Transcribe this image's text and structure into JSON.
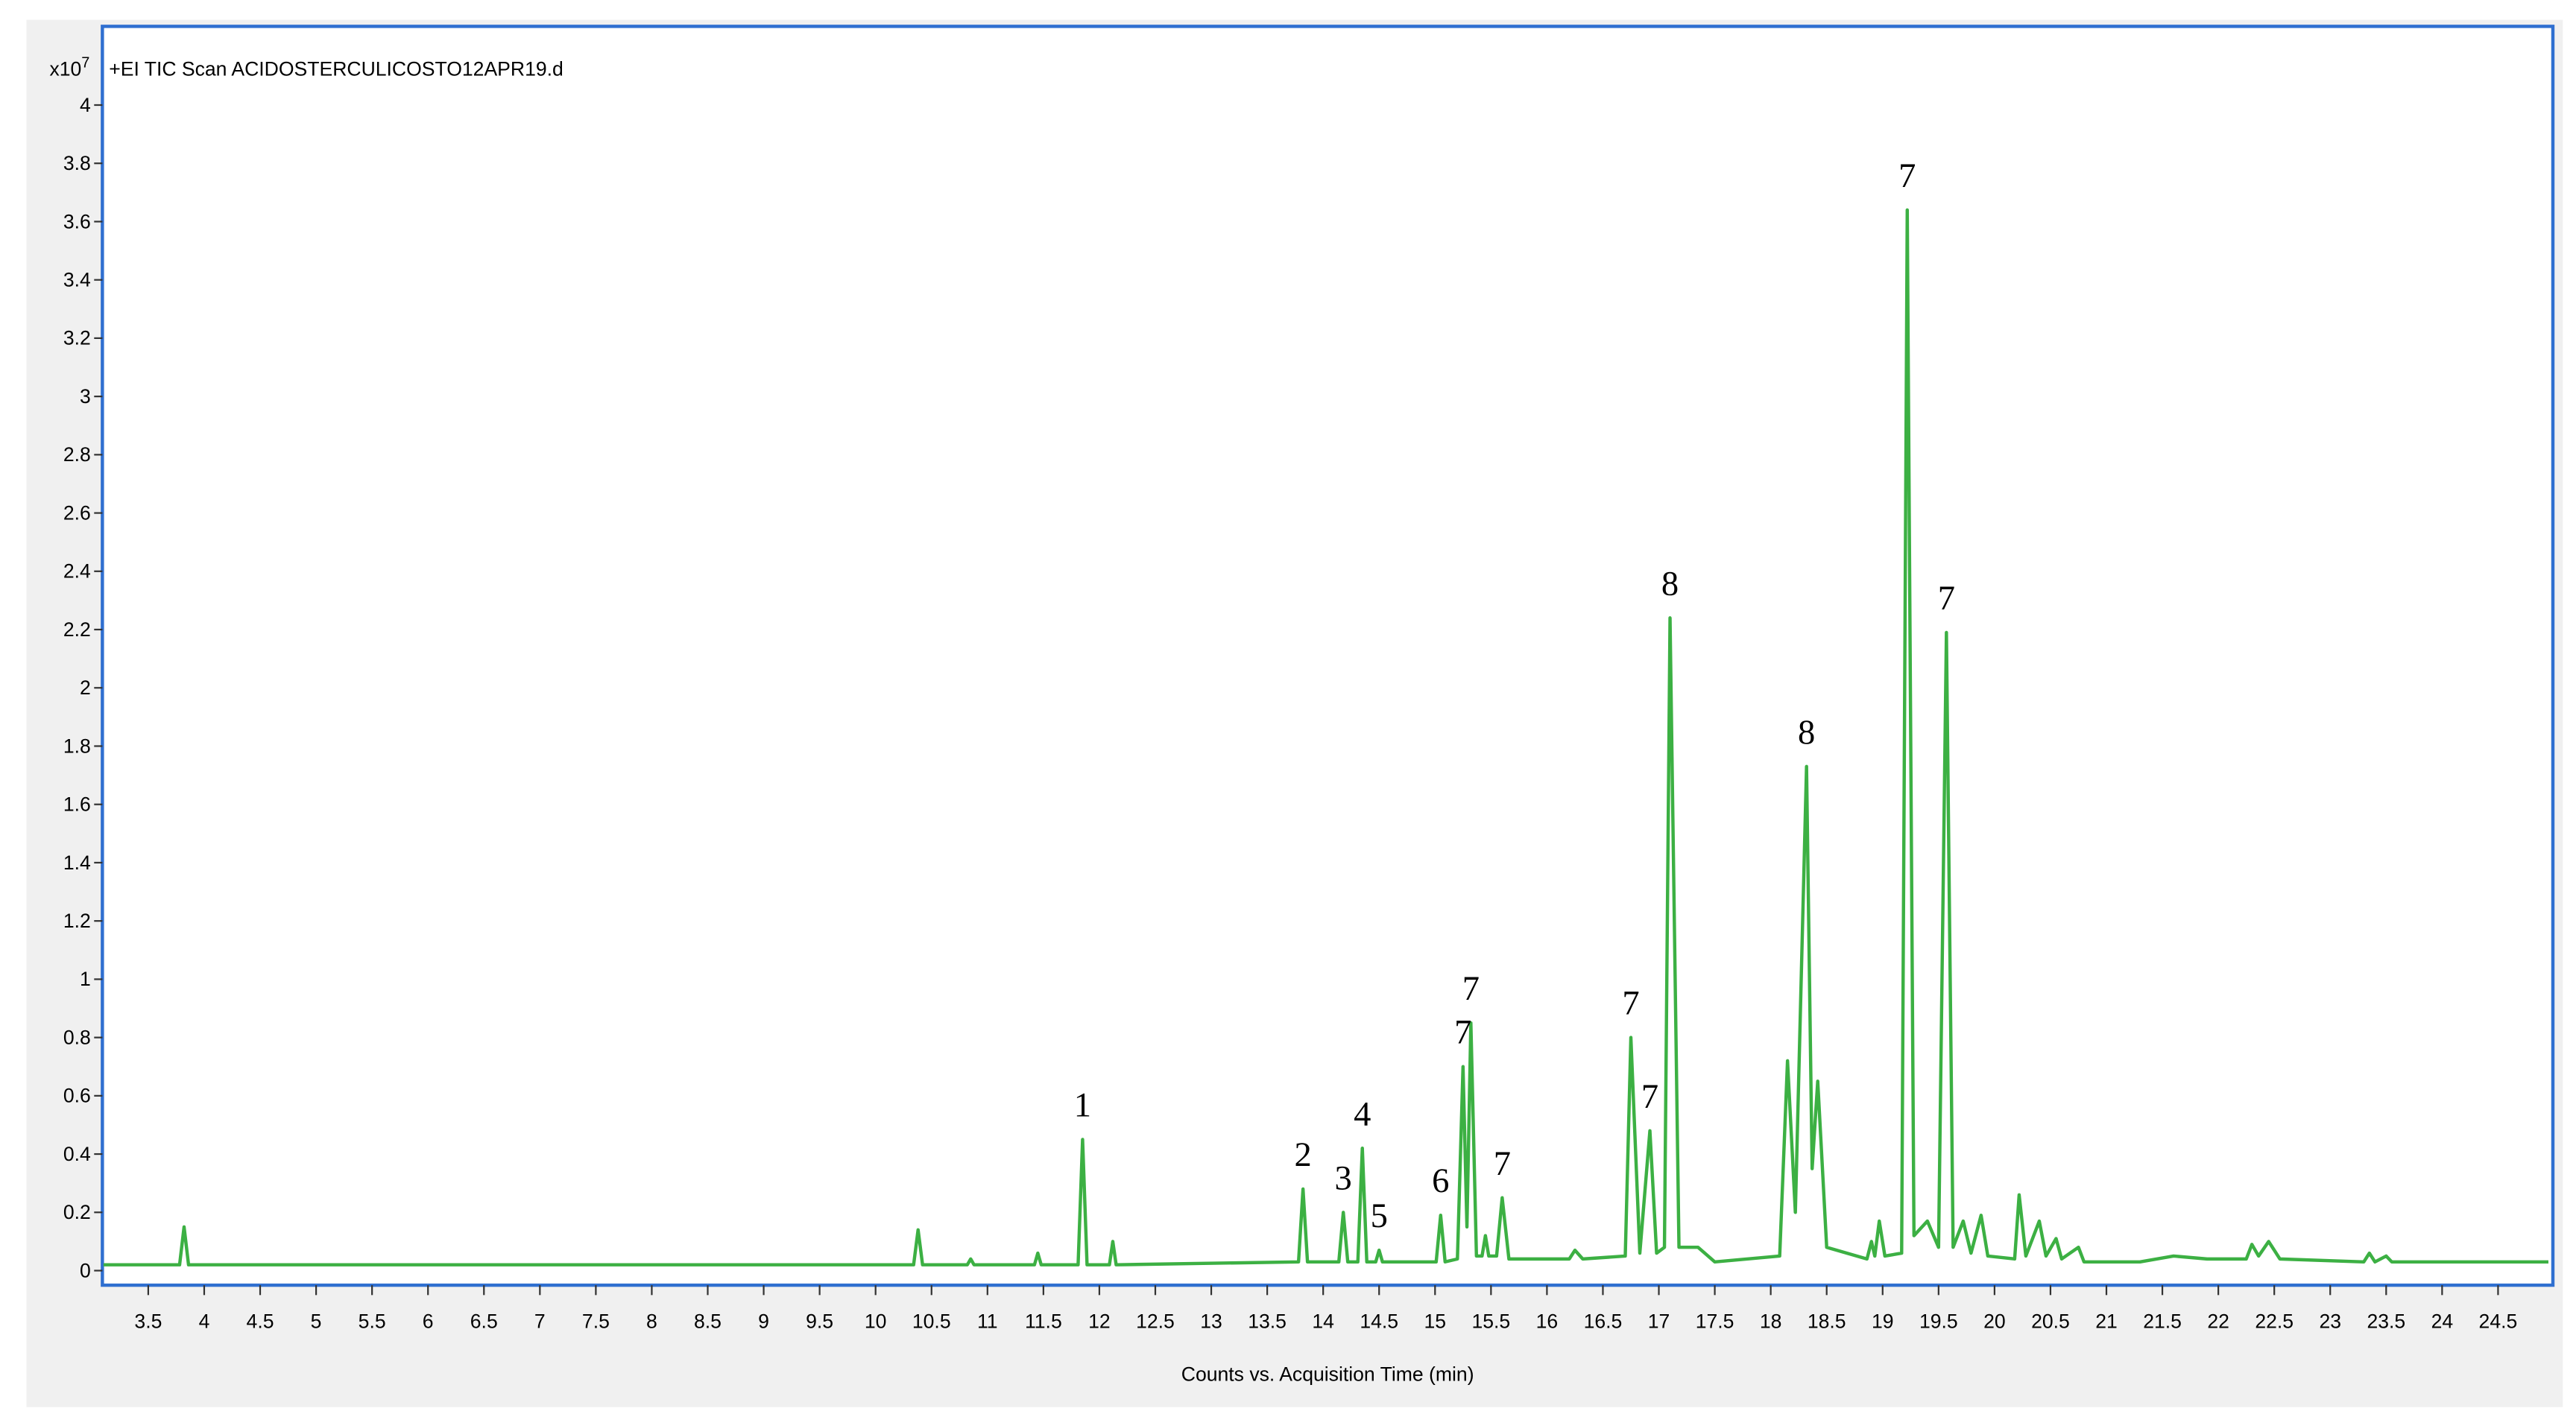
{
  "chart_data": {
    "type": "line",
    "title": "+EI TIC Scan ACIDOSTERCULICOSTO12APR19.d",
    "y_label": "x10",
    "y_label_exponent": "7",
    "x_label": "Counts vs. Acquisition Time (min)",
    "xlim": [
      3.09,
      24.99
    ],
    "ylim": [
      -0.05,
      4.27
    ],
    "xticks": [
      3.5,
      4,
      4.5,
      5,
      5.5,
      6,
      6.5,
      7,
      7.5,
      8,
      8.5,
      9,
      9.5,
      10,
      10.5,
      11,
      11.5,
      12,
      12.5,
      13,
      13.5,
      14,
      14.5,
      15,
      15.5,
      16,
      16.5,
      17,
      17.5,
      18,
      18.5,
      19,
      19.5,
      20,
      20.5,
      21,
      21.5,
      22,
      22.5,
      23,
      23.5,
      24,
      24.5
    ],
    "yticks": [
      0,
      0.2,
      0.4,
      0.6,
      0.8,
      1,
      1.2,
      1.4,
      1.6,
      1.8,
      2,
      2.2,
      2.4,
      2.6,
      2.8,
      3,
      3.2,
      3.4,
      3.6,
      3.8,
      4
    ],
    "x": [
      3.1,
      3.78,
      3.82,
      3.86,
      10.34,
      10.38,
      10.42,
      10.82,
      10.85,
      10.88,
      11.42,
      11.45,
      11.48,
      11.81,
      11.85,
      11.89,
      12.09,
      12.12,
      12.15,
      13.78,
      13.82,
      13.86,
      14.14,
      14.18,
      14.22,
      14.31,
      14.35,
      14.39,
      14.47,
      14.5,
      14.53,
      15.01,
      15.05,
      15.09,
      15.2,
      15.25,
      15.285,
      15.32,
      15.37,
      15.42,
      15.45,
      15.48,
      15.55,
      15.6,
      15.66,
      16.2,
      16.25,
      16.32,
      16.7,
      16.75,
      16.83,
      16.92,
      16.98,
      17.05,
      17.1,
      17.18,
      17.35,
      17.5,
      18.08,
      18.15,
      18.22,
      18.32,
      18.37,
      18.42,
      18.5,
      18.86,
      18.9,
      18.93,
      18.97,
      19.02,
      19.17,
      19.22,
      19.28,
      19.4,
      19.5,
      19.57,
      19.63,
      19.72,
      19.79,
      19.88,
      19.94,
      20.18,
      20.22,
      20.28,
      20.4,
      20.46,
      20.55,
      20.6,
      20.75,
      20.8,
      21.3,
      21.6,
      21.9,
      22.25,
      22.3,
      22.36,
      22.45,
      22.55,
      23.3,
      23.35,
      23.4,
      23.5,
      23.55,
      24.95
    ],
    "series": [
      {
        "color": "#3cb043",
        "values": [
          0.02,
          0.02,
          0.15,
          0.02,
          0.02,
          0.14,
          0.02,
          0.02,
          0.04,
          0.02,
          0.02,
          0.06,
          0.02,
          0.02,
          0.45,
          0.02,
          0.02,
          0.1,
          0.02,
          0.03,
          0.28,
          0.03,
          0.03,
          0.2,
          0.03,
          0.03,
          0.42,
          0.03,
          0.03,
          0.07,
          0.03,
          0.03,
          0.19,
          0.03,
          0.04,
          0.7,
          0.15,
          0.85,
          0.05,
          0.05,
          0.12,
          0.05,
          0.05,
          0.25,
          0.04,
          0.04,
          0.07,
          0.04,
          0.05,
          0.8,
          0.06,
          0.48,
          0.06,
          0.08,
          2.24,
          0.08,
          0.08,
          0.03,
          0.05,
          0.72,
          0.2,
          1.73,
          0.35,
          0.65,
          0.08,
          0.04,
          0.1,
          0.05,
          0.17,
          0.05,
          0.06,
          3.64,
          0.12,
          0.17,
          0.08,
          2.19,
          0.08,
          0.17,
          0.06,
          0.19,
          0.05,
          0.04,
          0.26,
          0.05,
          0.17,
          0.05,
          0.11,
          0.04,
          0.08,
          0.03,
          0.03,
          0.05,
          0.04,
          0.04,
          0.09,
          0.05,
          0.1,
          0.04,
          0.03,
          0.06,
          0.03,
          0.05,
          0.03,
          0.03
        ]
      }
    ],
    "annotations": [
      {
        "text": "1",
        "x": 11.85,
        "y": 0.45
      },
      {
        "text": "2",
        "x": 13.82,
        "y": 0.28
      },
      {
        "text": "3",
        "x": 14.18,
        "y": 0.2
      },
      {
        "text": "4",
        "x": 14.35,
        "y": 0.42
      },
      {
        "text": "5",
        "x": 14.5,
        "y": 0.07
      },
      {
        "text": "6",
        "x": 15.05,
        "y": 0.19
      },
      {
        "text": "7",
        "x": 15.25,
        "y": 0.7
      },
      {
        "text": "7",
        "x": 15.32,
        "y": 0.85
      },
      {
        "text": "7",
        "x": 15.6,
        "y": 0.25
      },
      {
        "text": "7",
        "x": 16.75,
        "y": 0.8
      },
      {
        "text": "7",
        "x": 16.92,
        "y": 0.48
      },
      {
        "text": "8",
        "x": 17.1,
        "y": 2.24
      },
      {
        "text": "8",
        "x": 18.32,
        "y": 1.73
      },
      {
        "text": "7",
        "x": 19.22,
        "y": 3.64
      },
      {
        "text": "7",
        "x": 19.57,
        "y": 2.19
      }
    ]
  }
}
